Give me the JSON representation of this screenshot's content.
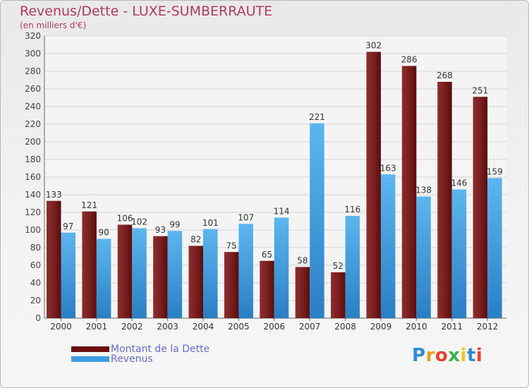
{
  "header": {
    "title": "Revenus/Dette - LUXE-SUMBERRAUTE",
    "subtitle": "(en milliers d'€)"
  },
  "chart_data": {
    "type": "bar",
    "title": "Revenus/Dette - LUXE-SUMBERRAUTE",
    "subtitle": "(en milliers d'€)",
    "categories": [
      "2000",
      "2001",
      "2002",
      "2003",
      "2004",
      "2005",
      "2006",
      "2007",
      "2008",
      "2009",
      "2010",
      "2011",
      "2012"
    ],
    "series": [
      {
        "name": "Montant de la Dette",
        "color": "#7a1c1c",
        "values": [
          133,
          121,
          106,
          93,
          82,
          75,
          65,
          58,
          52,
          302,
          286,
          268,
          251
        ]
      },
      {
        "name": "Revenus",
        "color": "#4aa3e0",
        "values": [
          97,
          90,
          102,
          99,
          101,
          107,
          114,
          221,
          116,
          163,
          138,
          146,
          159
        ]
      }
    ],
    "ylim": [
      0,
      320
    ],
    "ytick_step": 20,
    "grid": true,
    "legend_position": "bottom-left"
  },
  "legend": {
    "items": [
      {
        "label": "Montant de la Dette",
        "color": "#6b0f0f"
      },
      {
        "label": "Revenus",
        "color": "#3e9ce0"
      }
    ]
  },
  "logo": {
    "letters": [
      "P",
      "r",
      "o",
      "x",
      "i",
      "t",
      "i"
    ],
    "colors": [
      "#2e8bd6",
      "#f29a1e",
      "#e8402a",
      "#3ab54a",
      "#f2c41e",
      "#2e8bd6",
      "#e8402a"
    ]
  }
}
